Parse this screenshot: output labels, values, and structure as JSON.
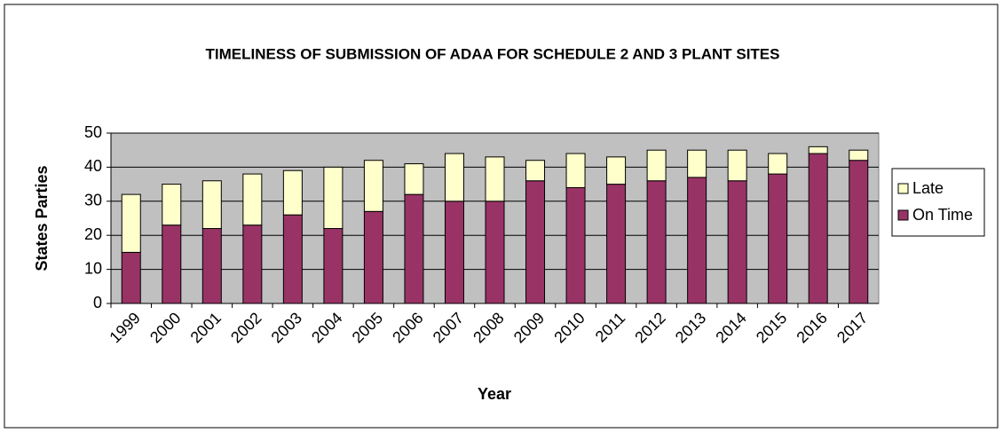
{
  "chart_data": {
    "type": "stacked_bar",
    "title": "TIMELINESS OF SUBMISSION OF ADAA FOR SCHEDULE 2 AND 3 PLANT SITES",
    "xlabel": "Year",
    "ylabel": "States Parties",
    "categories": [
      "1999",
      "2000",
      "2001",
      "2002",
      "2003",
      "2004",
      "2005",
      "2006",
      "2007",
      "2008",
      "2009",
      "2010",
      "2011",
      "2012",
      "2013",
      "2014",
      "2015",
      "2016",
      "2017"
    ],
    "series": [
      {
        "name": "On Time",
        "color": "#993366",
        "values": [
          15,
          23,
          22,
          23,
          26,
          22,
          27,
          32,
          30,
          30,
          36,
          34,
          35,
          36,
          37,
          36,
          38,
          44,
          42
        ]
      },
      {
        "name": "Late",
        "color": "#ffffcc",
        "values": [
          17,
          12,
          14,
          15,
          13,
          18,
          15,
          9,
          14,
          13,
          6,
          10,
          8,
          9,
          8,
          9,
          6,
          2,
          3
        ]
      }
    ],
    "ylim": [
      0,
      50
    ],
    "yticks": [
      0,
      10,
      20,
      30,
      40,
      50
    ],
    "grid": true,
    "legend": "right"
  }
}
